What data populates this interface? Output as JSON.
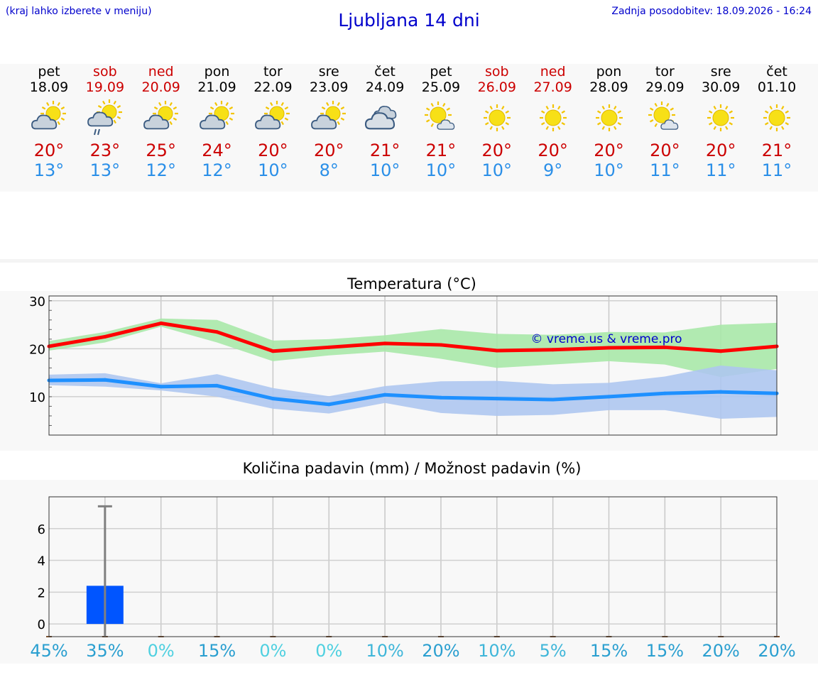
{
  "header": {
    "menu_hint": "(kraj lahko izberete v meniju)",
    "title": "Ljubljana 14 dni",
    "updated": "Zadnja posodobitev: 18.09.2026 - 16:24"
  },
  "days": [
    {
      "name": "pet",
      "date": "18.09",
      "weekend": false,
      "icon": "sun-cloud-icon",
      "tmax": "20°",
      "tmin": "13°"
    },
    {
      "name": "sob",
      "date": "19.09",
      "weekend": true,
      "icon": "sun-cloud-rain-icon",
      "tmax": "23°",
      "tmin": "13°"
    },
    {
      "name": "ned",
      "date": "20.09",
      "weekend": true,
      "icon": "sun-cloud-icon",
      "tmax": "25°",
      "tmin": "12°"
    },
    {
      "name": "pon",
      "date": "21.09",
      "weekend": false,
      "icon": "sun-cloud-icon",
      "tmax": "24°",
      "tmin": "12°"
    },
    {
      "name": "tor",
      "date": "22.09",
      "weekend": false,
      "icon": "sun-cloud-icon",
      "tmax": "20°",
      "tmin": "10°"
    },
    {
      "name": "sre",
      "date": "23.09",
      "weekend": false,
      "icon": "sun-cloud-icon",
      "tmax": "20°",
      "tmin": "8°"
    },
    {
      "name": "čet",
      "date": "24.09",
      "weekend": false,
      "icon": "cloud-icon",
      "tmax": "21°",
      "tmin": "10°"
    },
    {
      "name": "pet",
      "date": "25.09",
      "weekend": false,
      "icon": "sun-small-cloud-icon",
      "tmax": "21°",
      "tmin": "10°"
    },
    {
      "name": "sob",
      "date": "26.09",
      "weekend": true,
      "icon": "sun-icon",
      "tmax": "20°",
      "tmin": "10°"
    },
    {
      "name": "ned",
      "date": "27.09",
      "weekend": true,
      "icon": "sun-icon",
      "tmax": "20°",
      "tmin": "9°"
    },
    {
      "name": "pon",
      "date": "28.09",
      "weekend": false,
      "icon": "sun-icon",
      "tmax": "20°",
      "tmin": "10°"
    },
    {
      "name": "tor",
      "date": "29.09",
      "weekend": false,
      "icon": "sun-small-cloud-icon",
      "tmax": "20°",
      "tmin": "11°"
    },
    {
      "name": "sre",
      "date": "30.09",
      "weekend": false,
      "icon": "sun-icon",
      "tmax": "20°",
      "tmin": "11°"
    },
    {
      "name": "čet",
      "date": "01.10",
      "weekend": false,
      "icon": "sun-icon",
      "tmax": "21°",
      "tmin": "11°"
    }
  ],
  "colors": {
    "max_line": "#ff0000",
    "max_band": "#a9e8a9",
    "min_line": "#1e90ff",
    "min_band": "#aec6f0",
    "bar": "#0055ff",
    "error_bar": "#808080",
    "weekend_text": "#cc0000",
    "title_text": "#0000cc"
  },
  "chart_data": [
    {
      "type": "line",
      "title": "Temperatura (°C)",
      "watermark": "© vreme.us & vreme.pro",
      "ylim": [
        2,
        31
      ],
      "yticks": [
        "10",
        "20",
        "30"
      ],
      "grid": true,
      "series": [
        {
          "key": "max",
          "values": [
            20.5,
            22.5,
            25.3,
            23.5,
            19.5,
            20.3,
            21.1,
            20.8,
            19.6,
            19.8,
            20.2,
            20.3,
            19.5,
            20.5
          ],
          "band_low": [
            19.6,
            21.3,
            24.6,
            21.3,
            17.4,
            18.6,
            19.4,
            17.9,
            16.0,
            16.7,
            17.4,
            16.7,
            14.1,
            15.8
          ],
          "band_high": [
            21.6,
            23.5,
            26.3,
            26.0,
            21.7,
            22.0,
            22.8,
            24.1,
            23.1,
            22.9,
            23.5,
            23.4,
            25.0,
            25.4
          ]
        },
        {
          "key": "min",
          "values": [
            13.4,
            13.5,
            12.1,
            12.3,
            9.6,
            8.4,
            10.4,
            9.8,
            9.6,
            9.4,
            10.0,
            10.7,
            11.0,
            10.7
          ],
          "band_low": [
            12.4,
            12.1,
            11.3,
            10.0,
            7.5,
            6.5,
            8.7,
            6.6,
            6.0,
            6.2,
            7.2,
            7.2,
            5.4,
            5.8
          ],
          "band_high": [
            14.6,
            14.9,
            12.8,
            14.7,
            11.8,
            10.1,
            12.2,
            13.2,
            13.3,
            12.6,
            12.9,
            14.2,
            16.5,
            15.5
          ]
        }
      ]
    },
    {
      "type": "bar",
      "title": "Količina padavin (mm) / Možnost padavin (%)",
      "categories": [
        "pet",
        "sob",
        "ned",
        "pon",
        "tor",
        "sre",
        "čet",
        "pet",
        "sob",
        "ned",
        "pon",
        "tor",
        "sre",
        "čet"
      ],
      "values": [
        0,
        2.4,
        0,
        0,
        0,
        0,
        0,
        0,
        0,
        0,
        0,
        0,
        0,
        0
      ],
      "error_high": [
        0,
        7.4,
        0,
        0,
        0,
        0,
        0,
        0,
        0,
        0,
        0,
        0,
        0,
        0
      ],
      "ylim": [
        -0.8,
        8
      ],
      "yticks": [
        "0",
        "2",
        "4",
        "6"
      ],
      "grid": true,
      "probability": [
        "45%",
        "35%",
        "0%",
        "15%",
        "0%",
        "0%",
        "10%",
        "20%",
        "10%",
        "5%",
        "15%",
        "15%",
        "20%",
        "20%"
      ]
    }
  ]
}
